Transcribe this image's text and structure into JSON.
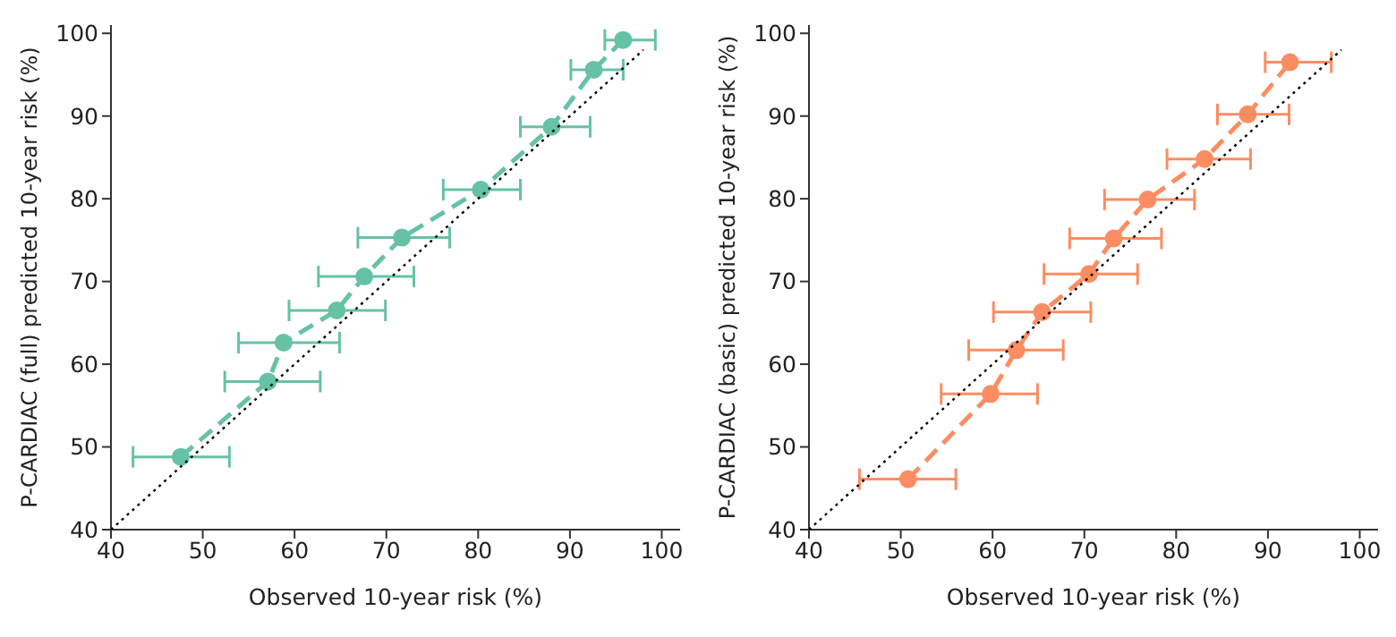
{
  "chart_data": [
    {
      "type": "line",
      "xlabel": "Observed 10-year risk (%)",
      "ylabel": "P-CARDIAC (full) predicted 10-year risk (%)",
      "xlim": [
        40,
        102
      ],
      "ylim": [
        40,
        101
      ],
      "xticks": [
        40,
        50,
        60,
        70,
        80,
        90,
        100
      ],
      "yticks": [
        40,
        50,
        60,
        70,
        80,
        90,
        100
      ],
      "grid": false,
      "legend": false,
      "series": [
        {
          "color": "#66c2a5",
          "marker": "circle",
          "line_style": "dashed",
          "x": [
            47.6,
            57.1,
            58.8,
            64.6,
            67.6,
            71.7,
            80.3,
            88.0,
            92.6,
            95.8
          ],
          "values": [
            48.8,
            57.9,
            62.6,
            66.5,
            70.6,
            75.3,
            81.1,
            88.7,
            95.6,
            99.2
          ],
          "xerrors": [
            [
              42.4,
              52.9
            ],
            [
              52.4,
              62.8
            ],
            [
              53.9,
              64.9
            ],
            [
              59.4,
              69.9
            ],
            [
              62.6,
              73.0
            ],
            [
              66.9,
              76.9
            ],
            [
              76.2,
              84.6
            ],
            [
              84.6,
              92.2
            ],
            [
              90.1,
              95.8
            ],
            [
              93.8,
              99.3
            ]
          ]
        },
        {
          "type": "line",
          "color": "#000000",
          "marker": "none",
          "line_style": "dotted",
          "x": [
            40,
            98
          ],
          "values": [
            40,
            98
          ]
        }
      ]
    },
    {
      "type": "line",
      "xlabel": "Observed 10-year risk (%)",
      "ylabel": "P-CARDIAC (basic) predicted 10-year risk (%)",
      "xlim": [
        40,
        102
      ],
      "ylim": [
        40,
        101
      ],
      "xticks": [
        40,
        50,
        60,
        70,
        80,
        90,
        100
      ],
      "yticks": [
        40,
        50,
        60,
        70,
        80,
        90,
        100
      ],
      "grid": false,
      "legend": false,
      "series": [
        {
          "color": "#fc8d62",
          "marker": "circle",
          "line_style": "dashed",
          "x": [
            50.8,
            59.8,
            62.6,
            65.4,
            70.5,
            73.2,
            76.9,
            83.1,
            87.8,
            92.4
          ],
          "values": [
            46.1,
            56.4,
            61.7,
            66.3,
            70.9,
            75.2,
            79.9,
            84.8,
            90.2,
            96.5
          ],
          "xerrors": [
            [
              45.5,
              56.0
            ],
            [
              54.4,
              64.9
            ],
            [
              57.4,
              67.7
            ],
            [
              60.1,
              70.7
            ],
            [
              65.6,
              75.8
            ],
            [
              68.4,
              78.4
            ],
            [
              72.2,
              82.0
            ],
            [
              79.0,
              88.1
            ],
            [
              84.5,
              92.3
            ],
            [
              89.7,
              96.9
            ]
          ]
        },
        {
          "type": "line",
          "color": "#000000",
          "marker": "none",
          "line_style": "dotted",
          "x": [
            40,
            98
          ],
          "values": [
            40,
            98
          ]
        }
      ]
    }
  ]
}
